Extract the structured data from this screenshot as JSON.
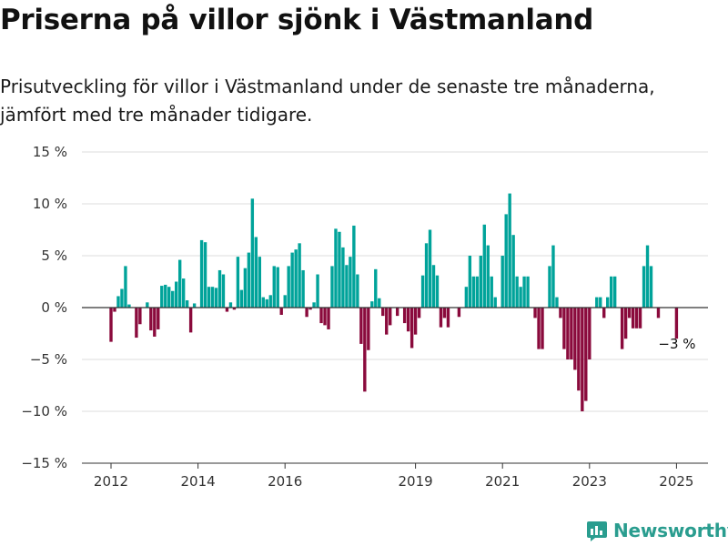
{
  "title": "Priserna på villor sjönk i Västmanland",
  "subtitle": "Prisutveckling för villor i Västmanland under de senaste tre månaderna, jämfört med tre månader tidigare.",
  "brand": "Newsworthy",
  "colors": {
    "positive": "#00a39a",
    "negative": "#8a0a3c",
    "grid": "#dddddd",
    "axis": "#333333"
  },
  "chart_data": {
    "type": "bar",
    "ylim": [
      -15,
      15
    ],
    "yticks": [
      15,
      10,
      5,
      0,
      -5,
      -10,
      -15
    ],
    "ytick_labels": [
      "15 %",
      "10 %",
      "5 %",
      "0 %",
      "−5 %",
      "−10 %",
      "−15 %"
    ],
    "xticks": [
      {
        "year": 2012,
        "label": "2012"
      },
      {
        "year": 2014,
        "label": "2014"
      },
      {
        "year": 2016,
        "label": "2016"
      },
      {
        "year": 2019,
        "label": "2019"
      },
      {
        "year": 2021,
        "label": "2021"
      },
      {
        "year": 2023,
        "label": "2023"
      },
      {
        "year": 2025,
        "label": "2025"
      }
    ],
    "start_date": "2012-01",
    "interval": "month",
    "annotation": {
      "label": "−3 %",
      "date": "2025-01",
      "value": -3
    },
    "values": [
      -3.3,
      -0.4,
      1.1,
      1.8,
      4.0,
      0.3,
      null,
      -2.9,
      -1.6,
      null,
      0.5,
      -2.2,
      -2.8,
      -2.1,
      2.1,
      2.2,
      2.0,
      1.6,
      2.5,
      4.6,
      2.8,
      0.7,
      -2.4,
      0.4,
      null,
      6.5,
      6.3,
      2.0,
      2.0,
      1.9,
      3.6,
      3.2,
      -0.4,
      0.5,
      -0.2,
      4.9,
      1.7,
      3.8,
      5.3,
      10.5,
      6.8,
      4.9,
      1.0,
      0.8,
      1.2,
      4.0,
      3.9,
      -0.7,
      1.2,
      4.0,
      5.3,
      5.6,
      6.2,
      3.6,
      -0.9,
      -0.2,
      0.5,
      3.2,
      -1.5,
      -1.7,
      -2.1,
      4.0,
      7.6,
      7.3,
      5.8,
      4.1,
      4.9,
      7.9,
      3.2,
      -3.5,
      -8.1,
      -4.1,
      0.6,
      3.7,
      0.9,
      -0.8,
      -2.6,
      -1.7,
      null,
      -0.8,
      null,
      -1.5,
      -2.3,
      -3.9,
      -2.6,
      -1.0,
      3.1,
      6.2,
      7.5,
      4.1,
      3.1,
      -1.9,
      -1.0,
      -1.9,
      null,
      null,
      -0.9,
      null,
      2.0,
      5.0,
      3.0,
      3.0,
      5.0,
      8.0,
      6.0,
      3.0,
      1.0,
      null,
      5.0,
      9.0,
      11.0,
      7.0,
      3.0,
      2.0,
      3.0,
      3.0,
      null,
      -1.0,
      -4.0,
      -4.0,
      null,
      4.0,
      6.0,
      1.0,
      -1.0,
      -4.0,
      -5.0,
      -5.0,
      -6.0,
      -8.0,
      -10.0,
      -9.0,
      -5.0,
      null,
      1.0,
      1.0,
      -1.0,
      1.0,
      3.0,
      3.0,
      null,
      -4.0,
      -3.0,
      -1.0,
      -2.0,
      -2.0,
      -2.0,
      4.0,
      6.0,
      4.0,
      null,
      -1.0,
      null,
      null,
      null,
      null,
      -3.0
    ]
  }
}
